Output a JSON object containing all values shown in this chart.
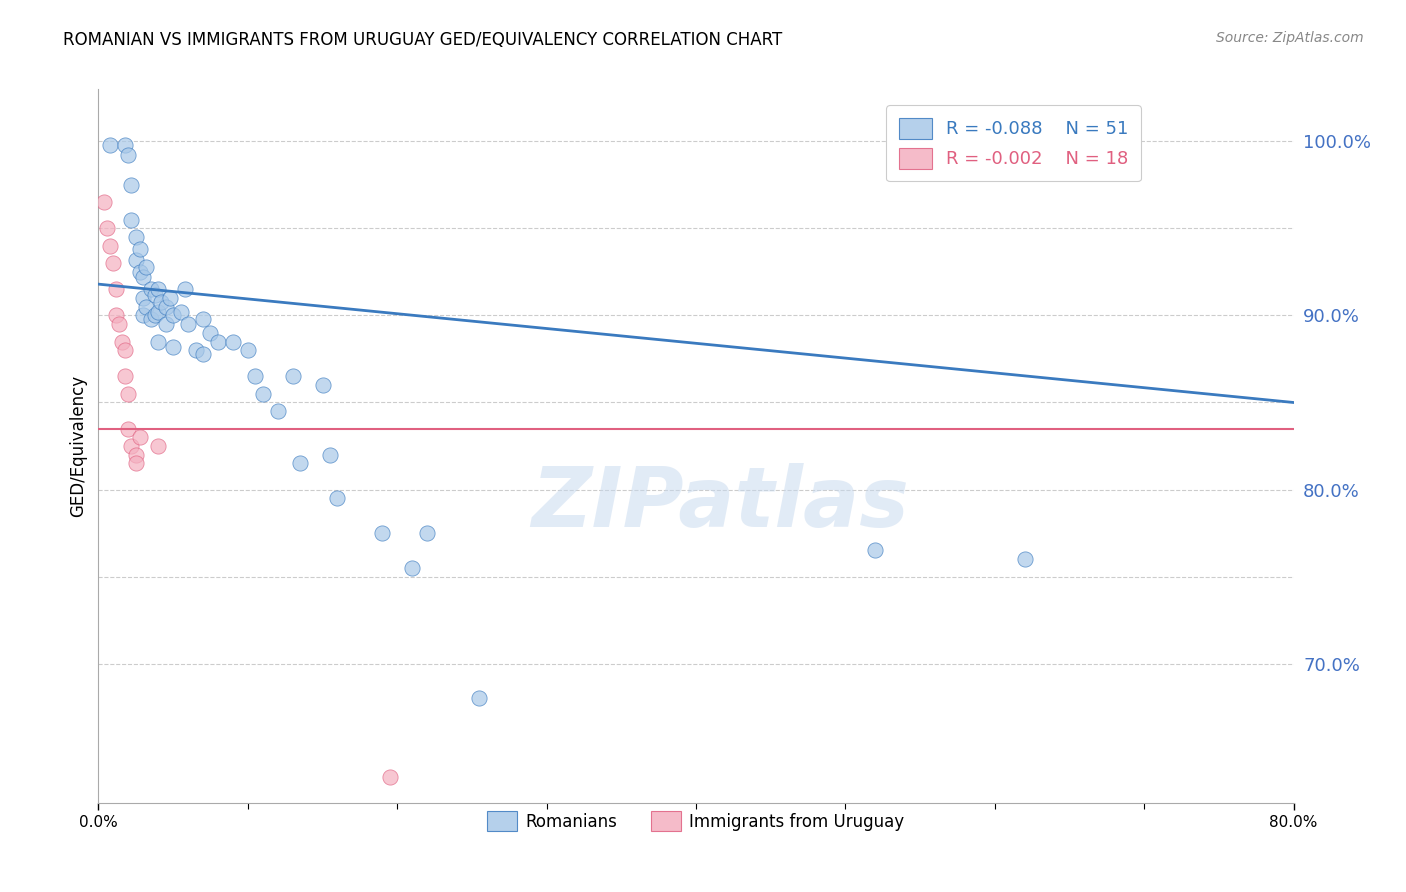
{
  "title": "ROMANIAN VS IMMIGRANTS FROM URUGUAY GED/EQUIVALENCY CORRELATION CHART",
  "source": "Source: ZipAtlas.com",
  "ylabel": "GED/Equivalency",
  "yticks": [
    70.0,
    80.0,
    90.0,
    100.0
  ],
  "ytick_labels": [
    "70.0%",
    "80.0%",
    "90.0%",
    "100.0%"
  ],
  "grid_yticks": [
    70.0,
    75.0,
    80.0,
    85.0,
    90.0,
    95.0,
    100.0
  ],
  "xlim": [
    0.0,
    0.8
  ],
  "ylim": [
    62.0,
    103.0
  ],
  "watermark": "ZIPatlas",
  "blue_color": "#a8c8e8",
  "pink_color": "#f4b0c0",
  "line_blue": "#3a7abf",
  "line_pink": "#e06080",
  "romanians_x": [
    0.008,
    0.018,
    0.02,
    0.022,
    0.022,
    0.025,
    0.025,
    0.028,
    0.028,
    0.03,
    0.03,
    0.03,
    0.032,
    0.032,
    0.035,
    0.035,
    0.038,
    0.038,
    0.04,
    0.04,
    0.04,
    0.042,
    0.045,
    0.045,
    0.048,
    0.05,
    0.05,
    0.055,
    0.058,
    0.06,
    0.065,
    0.07,
    0.07,
    0.075,
    0.08,
    0.09,
    0.1,
    0.105,
    0.11,
    0.12,
    0.13,
    0.135,
    0.15,
    0.155,
    0.16,
    0.19,
    0.21,
    0.22,
    0.255,
    0.52,
    0.62
  ],
  "romanians_y": [
    99.8,
    99.8,
    99.2,
    97.5,
    95.5,
    94.5,
    93.2,
    93.8,
    92.5,
    92.2,
    91.0,
    90.0,
    92.8,
    90.5,
    91.5,
    89.8,
    91.2,
    90.0,
    91.5,
    90.2,
    88.5,
    90.8,
    90.5,
    89.5,
    91.0,
    90.0,
    88.2,
    90.2,
    91.5,
    89.5,
    88.0,
    89.8,
    87.8,
    89.0,
    88.5,
    88.5,
    88.0,
    86.5,
    85.5,
    84.5,
    86.5,
    81.5,
    86.0,
    82.0,
    79.5,
    77.5,
    75.5,
    77.5,
    68.0,
    76.5,
    76.0
  ],
  "uruguay_x": [
    0.004,
    0.006,
    0.008,
    0.01,
    0.012,
    0.012,
    0.014,
    0.016,
    0.018,
    0.018,
    0.02,
    0.02,
    0.022,
    0.025,
    0.025,
    0.028,
    0.04,
    0.195
  ],
  "uruguay_y": [
    96.5,
    95.0,
    94.0,
    93.0,
    91.5,
    90.0,
    89.5,
    88.5,
    88.0,
    86.5,
    85.5,
    83.5,
    82.5,
    82.0,
    81.5,
    83.0,
    82.5,
    63.5
  ],
  "blue_trend_x": [
    0.0,
    0.8
  ],
  "blue_trend_y": [
    91.8,
    85.0
  ],
  "pink_trend_y": [
    83.5,
    83.5
  ],
  "dpi": 100,
  "figw": 14.06,
  "figh": 8.92
}
